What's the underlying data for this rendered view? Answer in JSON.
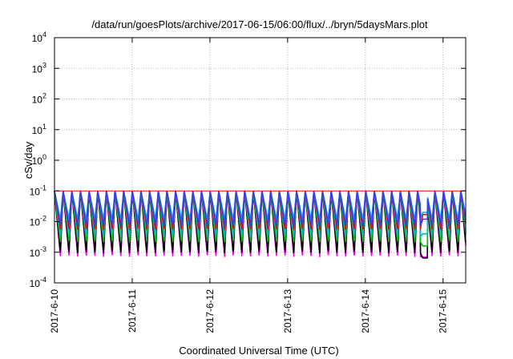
{
  "chart_data": {
    "type": "line",
    "title": "/data/run/goesPlots/archive/2017-06-15/06:00/flux/../bryn/5daysMars.plot",
    "xlabel": "Coordinated Universal Time (UTC)",
    "ylabel": "cSv/day",
    "yscale": "log",
    "ylim": [
      0.0001,
      10000
    ],
    "xlim": [
      "2017-06-10T00:00",
      "2017-06-15T07:00"
    ],
    "grid": true,
    "x_ticks": [
      "2017-6-10",
      "2017-6-11",
      "2017-6-12",
      "2017-6-13",
      "2017-6-14",
      "2017-6-15"
    ],
    "y_ticks": [
      {
        "base": "10",
        "exp": "-4",
        "value": 0.0001
      },
      {
        "base": "10",
        "exp": "-3",
        "value": 0.001
      },
      {
        "base": "10",
        "exp": "-2",
        "value": 0.01
      },
      {
        "base": "10",
        "exp": "-1",
        "value": 0.1
      },
      {
        "base": "10",
        "exp": "0",
        "value": 1
      },
      {
        "base": "10",
        "exp": "1",
        "value": 10
      },
      {
        "base": "10",
        "exp": "2",
        "value": 100
      },
      {
        "base": "10",
        "exp": "3",
        "value": 1000
      },
      {
        "base": "10",
        "exp": "4",
        "value": 10000
      }
    ],
    "reference_line": {
      "value": 0.1,
      "color": "#ff0000"
    },
    "pattern": {
      "cycle_hours": 2.67,
      "peak": 0.11,
      "recovery_start_fraction": 0.68,
      "dip_window": {
        "start": "2017-06-14T17:00",
        "end": "2017-06-14T19:15"
      }
    },
    "series": [
      {
        "color": "#ff0000",
        "peak": 0.1,
        "trough": 0.0055,
        "dip": 0.017
      },
      {
        "color": "#00c800",
        "peak": 0.1,
        "trough": 0.0022,
        "dip": 0.0016
      },
      {
        "color": "#00bcbc",
        "peak": 0.1,
        "trough": 0.0032,
        "dip": 0.004
      },
      {
        "color": "#000000",
        "peak": 0.1,
        "trough": 0.00095,
        "dip": 0.00065
      },
      {
        "color": "#3a3af0",
        "peak": 0.1,
        "trough": 0.0075,
        "dip": 0.012
      },
      {
        "color": "#ff00ff",
        "peak": 0.1,
        "trough": 0.00072,
        "dip": 0.0007
      },
      {
        "color": "#00aaff",
        "peak": 0.1,
        "trough": 0.012,
        "dip": 0.02
      }
    ]
  }
}
